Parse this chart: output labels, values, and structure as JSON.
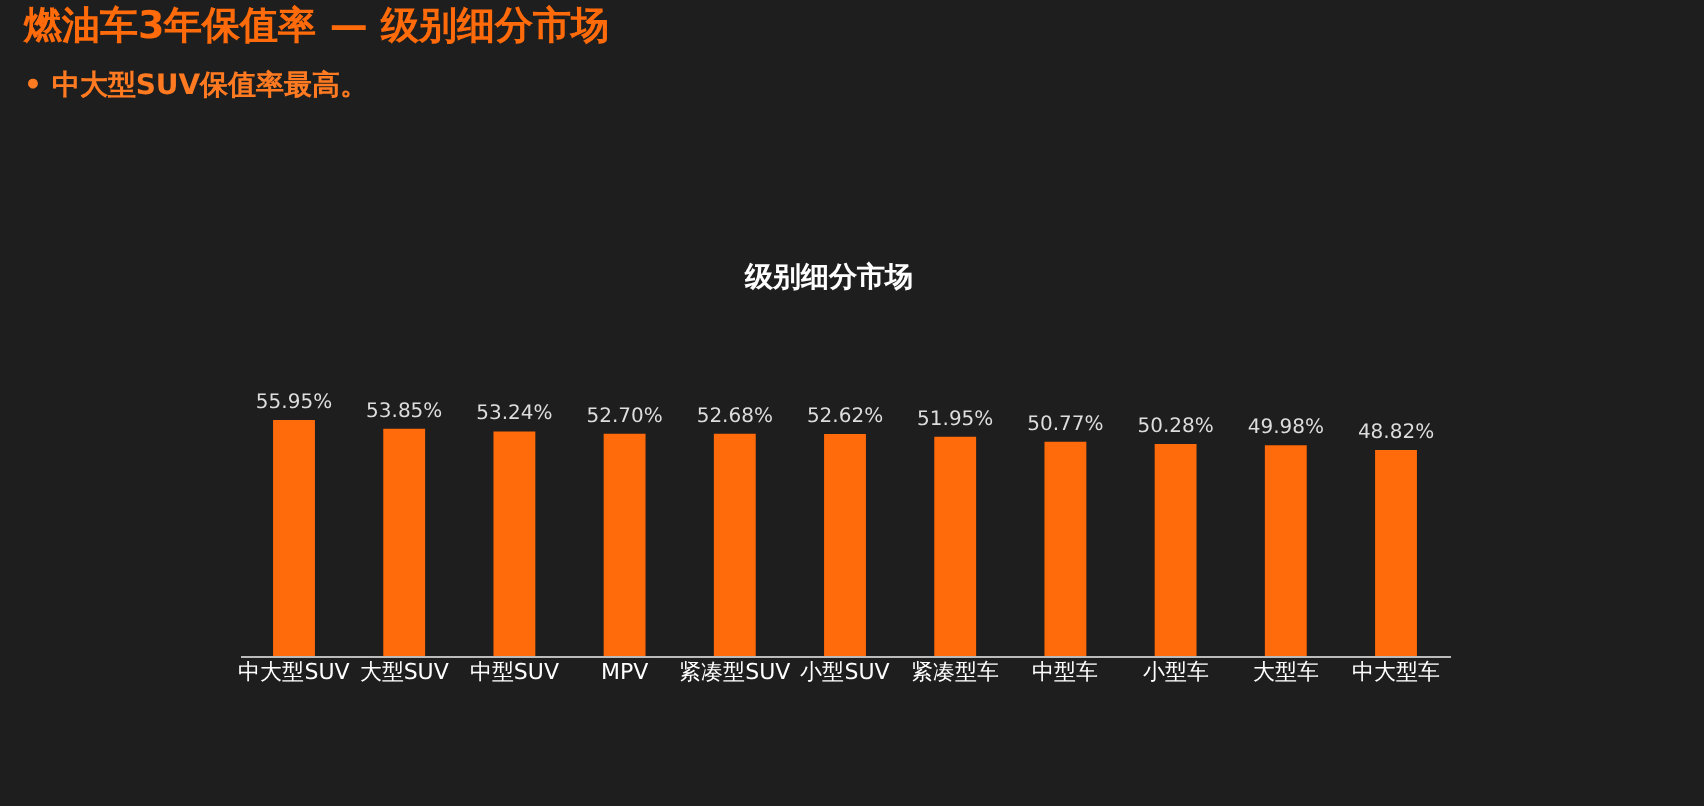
{
  "chart_data": {
    "type": "bar",
    "title": "燃油车3年保值率 — 级别细分市场",
    "subtitle": "• 中大型SUV保值率最高。",
    "annotations": [
      "级别细分市场"
    ],
    "categories": [
      "中大型SUV",
      "大型SUV",
      "中型SUV",
      "MPV",
      "紧凑型SUV",
      "小型SUV",
      "紧凑型车",
      "中型车",
      "小型车",
      "大型车",
      "中大型车"
    ],
    "values": [
      55.95,
      53.85,
      53.24,
      52.7,
      52.68,
      52.62,
      51.95,
      50.77,
      50.28,
      49.98,
      48.82
    ],
    "value_labels": [
      "55.95%",
      "53.85%",
      "53.24%",
      "52.70%",
      "52.68%",
      "52.62%",
      "51.95%",
      "50.77%",
      "50.28%",
      "49.98%",
      "48.82%"
    ],
    "color": "#ff6a0a",
    "tick_labels": "x",
    "grid": false
  }
}
